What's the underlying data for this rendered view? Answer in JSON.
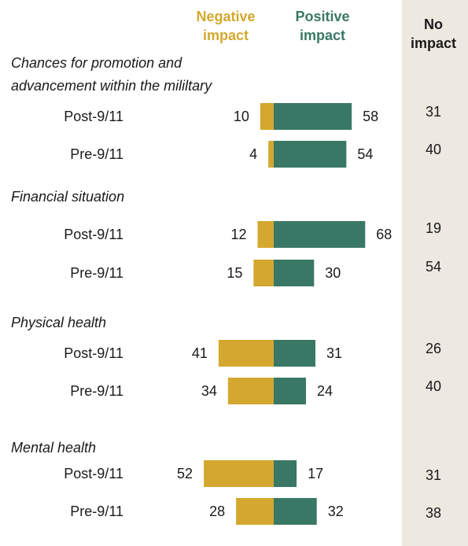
{
  "colors": {
    "negative": "#d4a82e",
    "positive": "#3a7866",
    "no_impact_bg": "#ede8e0",
    "text": "#1a1a1a"
  },
  "headers": {
    "negative": [
      "Negative",
      "impact"
    ],
    "positive": [
      "Positive",
      "impact"
    ],
    "no_impact": [
      "No",
      "impact"
    ]
  },
  "chart_data": {
    "type": "bar",
    "orientation": "horizontal-diverging",
    "legend_placement": "top",
    "grid": false,
    "series": [
      {
        "name": "Negative impact",
        "color": "#d4a82e"
      },
      {
        "name": "Positive impact",
        "color": "#3a7866"
      },
      {
        "name": "No impact"
      }
    ],
    "groups": [
      {
        "title": [
          "Chances for promotion and",
          "advancement within the mililtary"
        ],
        "rows": [
          {
            "label": "Post-9/11",
            "negative": 10,
            "positive": 58,
            "no_impact": 31
          },
          {
            "label": "Pre-9/11",
            "negative": 4,
            "positive": 54,
            "no_impact": 40
          }
        ]
      },
      {
        "title": [
          "Financial situation"
        ],
        "rows": [
          {
            "label": "Post-9/11",
            "negative": 12,
            "positive": 68,
            "no_impact": 19
          },
          {
            "label": "Pre-9/11",
            "negative": 15,
            "positive": 30,
            "no_impact": 54
          }
        ]
      },
      {
        "title": [
          "Physical health"
        ],
        "rows": [
          {
            "label": "Post-9/11",
            "negative": 41,
            "positive": 31,
            "no_impact": 26
          },
          {
            "label": "Pre-9/11",
            "negative": 34,
            "positive": 24,
            "no_impact": 40
          }
        ]
      },
      {
        "title": [
          "Mental health"
        ],
        "rows": [
          {
            "label": "Post-9/11",
            "negative": 52,
            "positive": 17,
            "no_impact": 31
          },
          {
            "label": "Pre-9/11",
            "negative": 28,
            "positive": 32,
            "no_impact": 38
          }
        ]
      }
    ]
  }
}
